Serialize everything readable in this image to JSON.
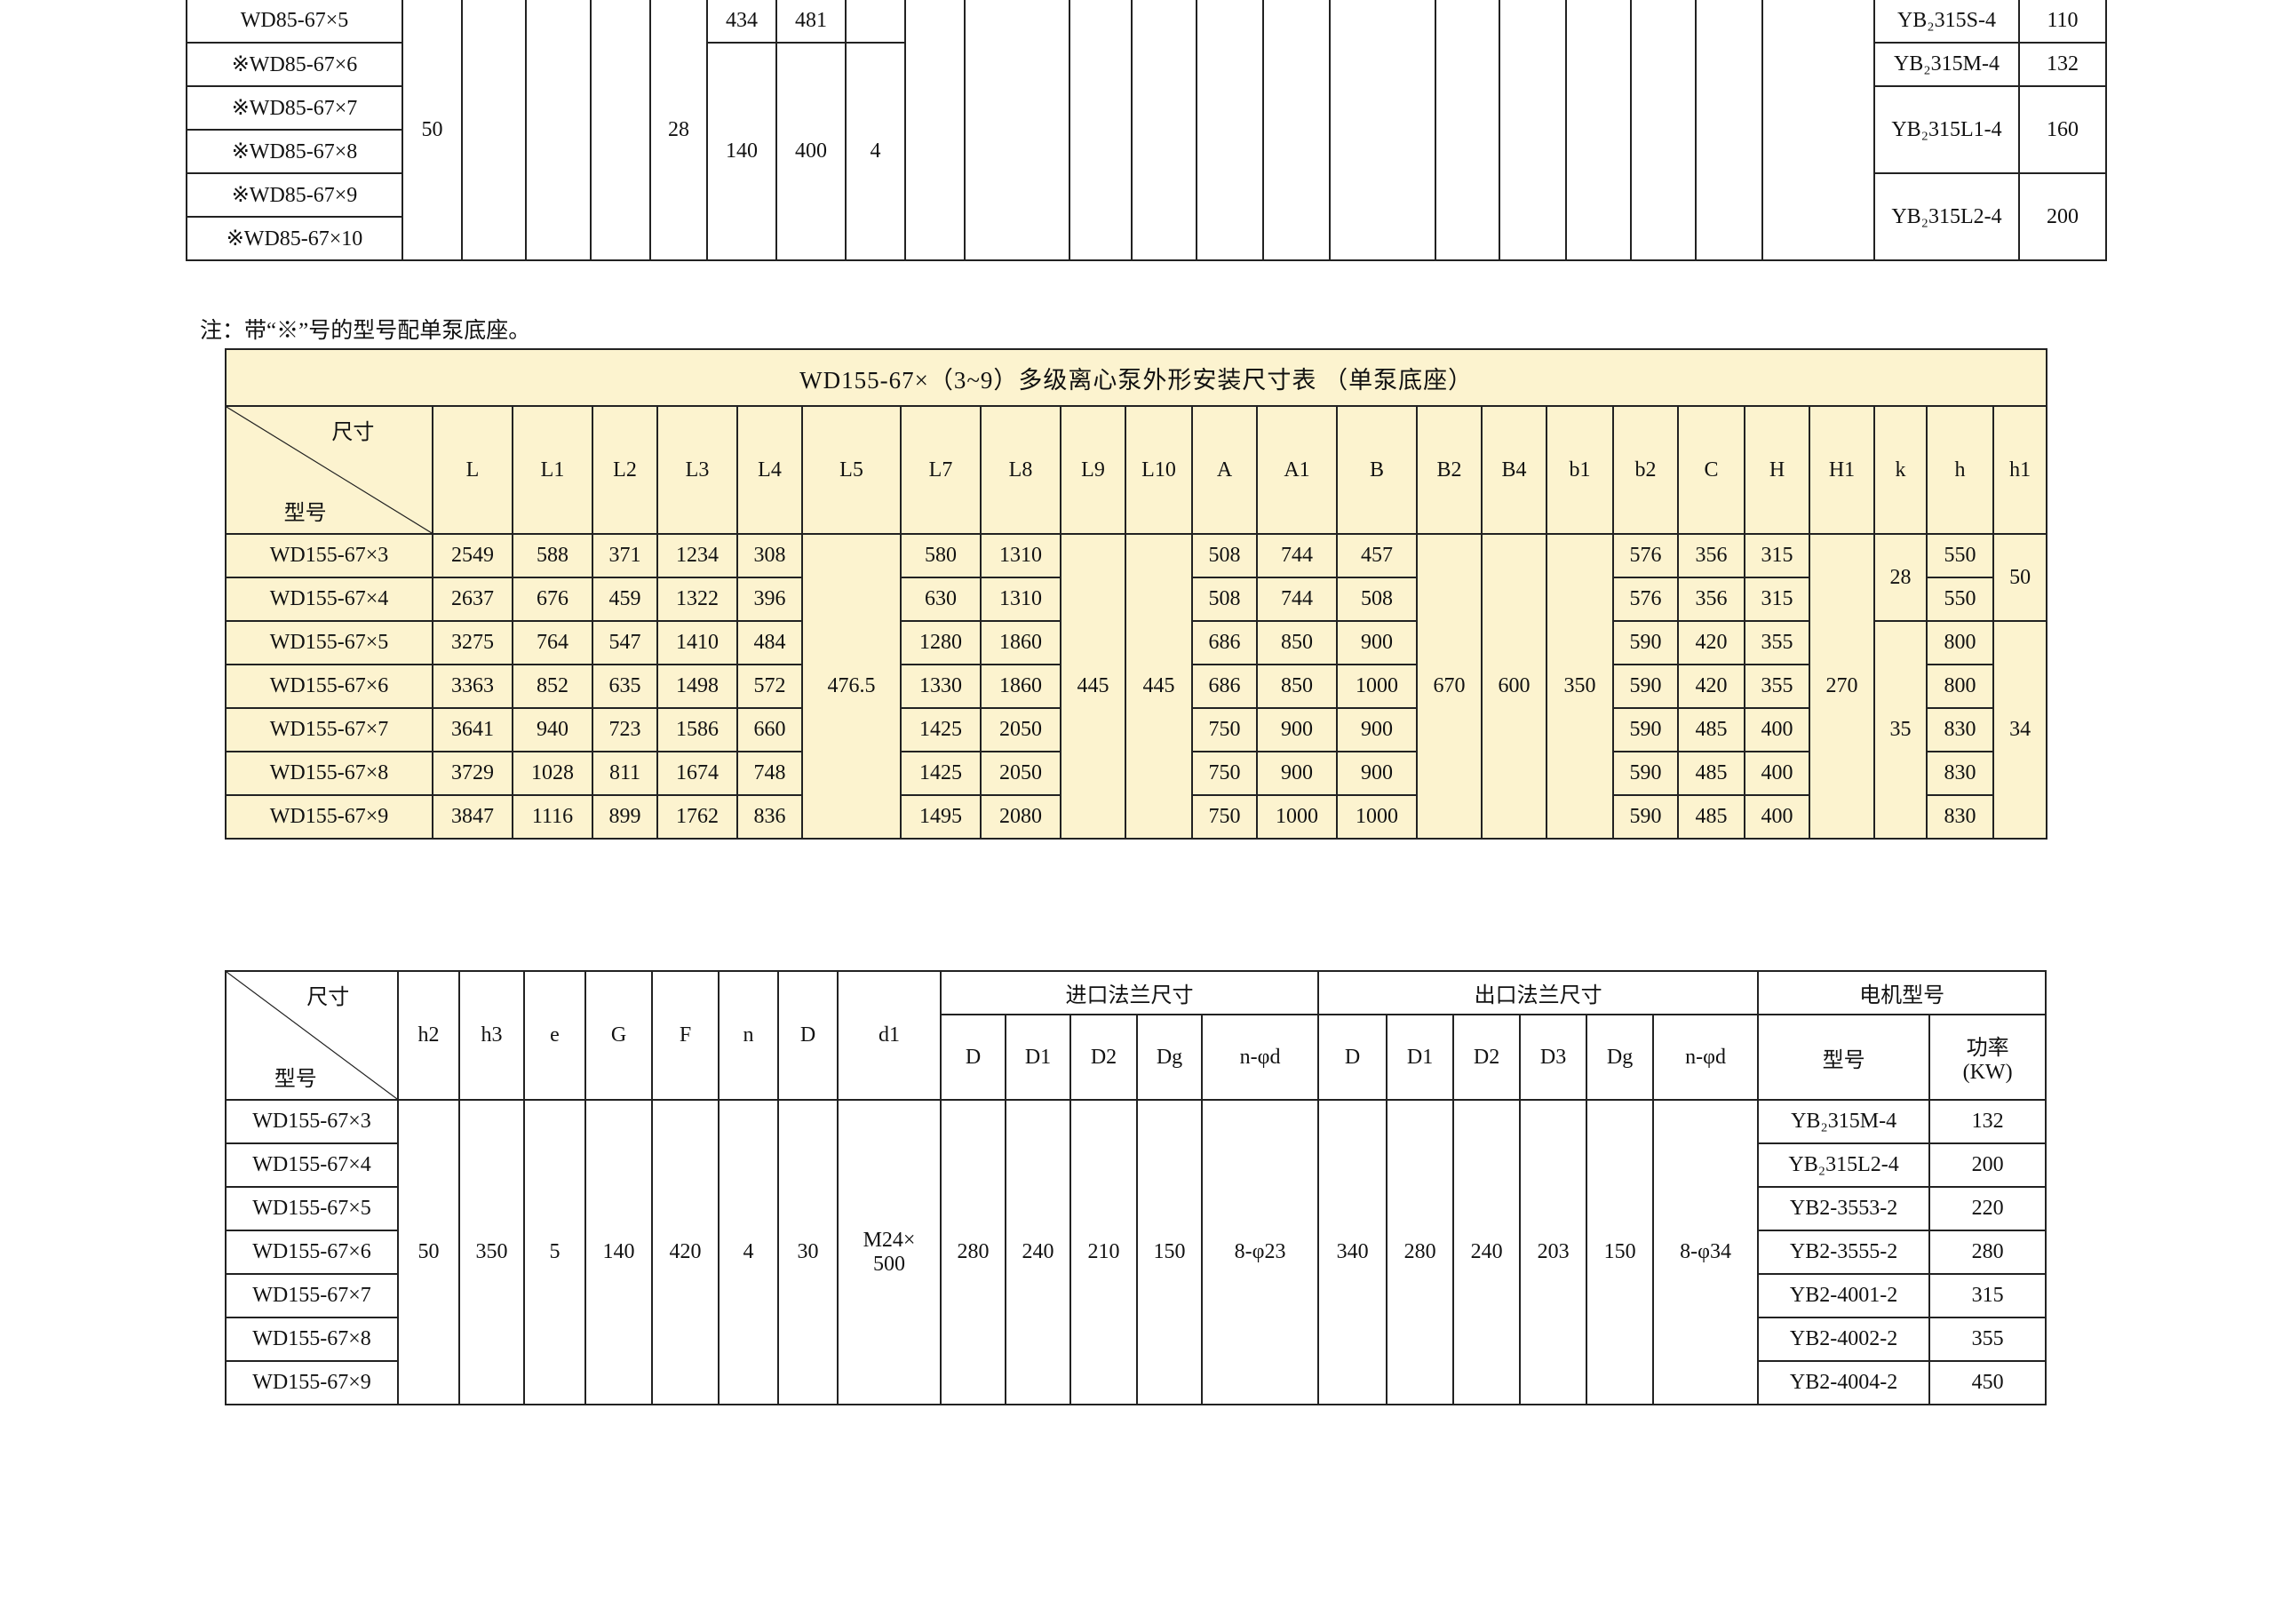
{
  "table1": {
    "models": [
      "WD85-67×5",
      "※WD85-67×6",
      "※WD85-67×7",
      "※WD85-67×8",
      "※WD85-67×9",
      "※WD85-67×10"
    ],
    "merged_a": "50",
    "merged_b": "28",
    "row1_vals": [
      "434",
      "481",
      ""
    ],
    "rest_vals": [
      "140",
      "400",
      "4"
    ],
    "motors": [
      {
        "type": "YB₂315S-4",
        "power": "110"
      },
      {
        "type": "YB₂315M-4",
        "power": "132"
      },
      {
        "type": "YB₂315L1-4",
        "power": "160"
      },
      {
        "type": "YB₂315L2-4",
        "power": "200"
      }
    ]
  },
  "note": "注：带“※”号的型号配单泵底座。",
  "table2": {
    "title": "WD155-67×（3~9）多级离心泵外形安装尺寸表 （单泵底座）",
    "corner_top": "尺寸",
    "corner_bottom": "型号",
    "columns": [
      "L",
      "L1",
      "L2",
      "L3",
      "L4",
      "L5",
      "L7",
      "L8",
      "L9",
      "L10",
      "A",
      "A1",
      "B",
      "B2",
      "B4",
      "b1",
      "b2",
      "C",
      "H",
      "H1",
      "k",
      "h",
      "h1"
    ],
    "rows": [
      {
        "model": "WD155-67×3",
        "L": "2549",
        "L1": "588",
        "L2": "371",
        "L3": "1234",
        "L4": "308",
        "L7": "580",
        "L8": "1310",
        "A": "508",
        "A1": "744",
        "B": "457",
        "b2": "576",
        "C": "356",
        "H": "315",
        "h": "550"
      },
      {
        "model": "WD155-67×4",
        "L": "2637",
        "L1": "676",
        "L2": "459",
        "L3": "1322",
        "L4": "396",
        "L7": "630",
        "L8": "1310",
        "A": "508",
        "A1": "744",
        "B": "508",
        "b2": "576",
        "C": "356",
        "H": "315",
        "h": "550"
      },
      {
        "model": "WD155-67×5",
        "L": "3275",
        "L1": "764",
        "L2": "547",
        "L3": "1410",
        "L4": "484",
        "L7": "1280",
        "L8": "1860",
        "A": "686",
        "A1": "850",
        "B": "900",
        "b2": "590",
        "C": "420",
        "H": "355",
        "h": "800"
      },
      {
        "model": "WD155-67×6",
        "L": "3363",
        "L1": "852",
        "L2": "635",
        "L3": "1498",
        "L4": "572",
        "L7": "1330",
        "L8": "1860",
        "A": "686",
        "A1": "850",
        "B": "1000",
        "b2": "590",
        "C": "420",
        "H": "355",
        "h": "800"
      },
      {
        "model": "WD155-67×7",
        "L": "3641",
        "L1": "940",
        "L2": "723",
        "L3": "1586",
        "L4": "660",
        "L7": "1425",
        "L8": "2050",
        "A": "750",
        "A1": "900",
        "B": "900",
        "b2": "590",
        "C": "485",
        "H": "400",
        "h": "830"
      },
      {
        "model": "WD155-67×8",
        "L": "3729",
        "L1": "1028",
        "L2": "811",
        "L3": "1674",
        "L4": "748",
        "L7": "1425",
        "L8": "2050",
        "A": "750",
        "A1": "900",
        "B": "900",
        "b2": "590",
        "C": "485",
        "H": "400",
        "h": "830"
      },
      {
        "model": "WD155-67×9",
        "L": "3847",
        "L1": "1116",
        "L2": "899",
        "L3": "1762",
        "L4": "836",
        "L7": "1495",
        "L8": "2080",
        "A": "750",
        "A1": "1000",
        "B": "1000",
        "b2": "590",
        "C": "485",
        "H": "400",
        "h": "830"
      }
    ],
    "merged": {
      "L5": "476.5",
      "L9": "445",
      "L10": "445",
      "B2": "670",
      "B4": "600",
      "b1": "350",
      "H1": "270",
      "k": [
        "28",
        "35"
      ],
      "h1": [
        "50",
        "34"
      ]
    }
  },
  "table3": {
    "corner_top": "尺寸",
    "corner_bottom": "型号",
    "columns": [
      "h2",
      "h3",
      "e",
      "G",
      "F",
      "n",
      "D",
      "d1"
    ],
    "group_inlet": "进口法兰尺寸",
    "group_outlet": "出口法兰尺寸",
    "group_motor": "电机型号",
    "inlet_cols": [
      "D",
      "D1",
      "D2",
      "Dg",
      "n-φd"
    ],
    "outlet_cols": [
      "D",
      "D1",
      "D2",
      "D3",
      "Dg",
      "n-φd"
    ],
    "motor_cols": [
      "型号",
      "功率\n(KW)"
    ],
    "models": [
      "WD155-67×3",
      "WD155-67×4",
      "WD155-67×5",
      "WD155-67×6",
      "WD155-67×7",
      "WD155-67×8",
      "WD155-67×9"
    ],
    "shared_values": [
      "50",
      "350",
      "5",
      "140",
      "420",
      "4",
      "30",
      "M24×\n500"
    ],
    "inlet_values": [
      "280",
      "240",
      "210",
      "150",
      "8-φ23"
    ],
    "outlet_values": [
      "340",
      "280",
      "240",
      "203",
      "150",
      "8-φ34"
    ],
    "motors": [
      {
        "type": "YB₂315M-4",
        "power": "132"
      },
      {
        "type": "YB₂315L2-4",
        "power": "200"
      },
      {
        "type": "YB2-3553-2",
        "power": "220"
      },
      {
        "type": "YB2-3555-2",
        "power": "280"
      },
      {
        "type": "YB2-4001-2",
        "power": "315"
      },
      {
        "type": "YB2-4002-2",
        "power": "355"
      },
      {
        "type": "YB2-4004-2",
        "power": "450"
      }
    ]
  }
}
